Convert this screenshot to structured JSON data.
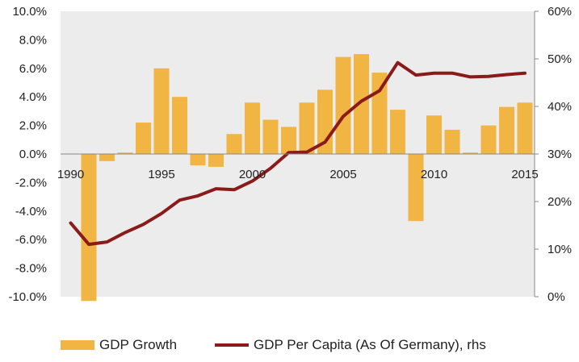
{
  "chart_data": {
    "type": "bar+line",
    "title": "",
    "x": [
      1990,
      1991,
      1992,
      1993,
      1994,
      1995,
      1996,
      1997,
      1998,
      1999,
      2000,
      2001,
      2002,
      2003,
      2004,
      2005,
      2006,
      2007,
      2008,
      2009,
      2010,
      2011,
      2012,
      2013,
      2014,
      2015
    ],
    "x_ticks": [
      "1990",
      "1995",
      "2000",
      "2005",
      "2010",
      "2015"
    ],
    "y_left_ticks": [
      "10.0%",
      "8.0%",
      "6.0%",
      "4.0%",
      "2.0%",
      "0.0%",
      "-2.0%",
      "-4.0%",
      "-6.0%",
      "-8.0%",
      "-10.0%"
    ],
    "y_right_ticks": [
      "60%",
      "50%",
      "40%",
      "30%",
      "20%",
      "10%",
      "0%"
    ],
    "ylim_left": [
      -10,
      10
    ],
    "ylim_right": [
      0,
      60
    ],
    "series": [
      {
        "name": "GDP Growth",
        "type": "bar",
        "axis": "left",
        "color": "#F0B542",
        "values": [
          null,
          -10.3,
          -0.5,
          0.1,
          2.2,
          6.0,
          4.0,
          -0.8,
          -0.9,
          1.4,
          3.6,
          2.4,
          1.9,
          3.6,
          4.5,
          6.8,
          7.0,
          5.7,
          3.1,
          -4.7,
          2.7,
          1.7,
          0.1,
          2.0,
          3.3,
          3.6
        ]
      },
      {
        "name": "GDP Per Capita (As Of Germany), rhs",
        "type": "line",
        "axis": "right",
        "color": "#8B1A1A",
        "values": [
          15.5,
          11.0,
          11.5,
          13.5,
          15.2,
          17.5,
          20.3,
          21.2,
          22.7,
          22.5,
          24.3,
          27.0,
          30.3,
          30.4,
          32.5,
          37.9,
          41.1,
          43.3,
          49.2,
          46.6,
          47.0,
          47.0,
          46.2,
          46.3,
          46.7,
          47.0
        ]
      }
    ],
    "grid": false,
    "legend_position": "bottom"
  }
}
